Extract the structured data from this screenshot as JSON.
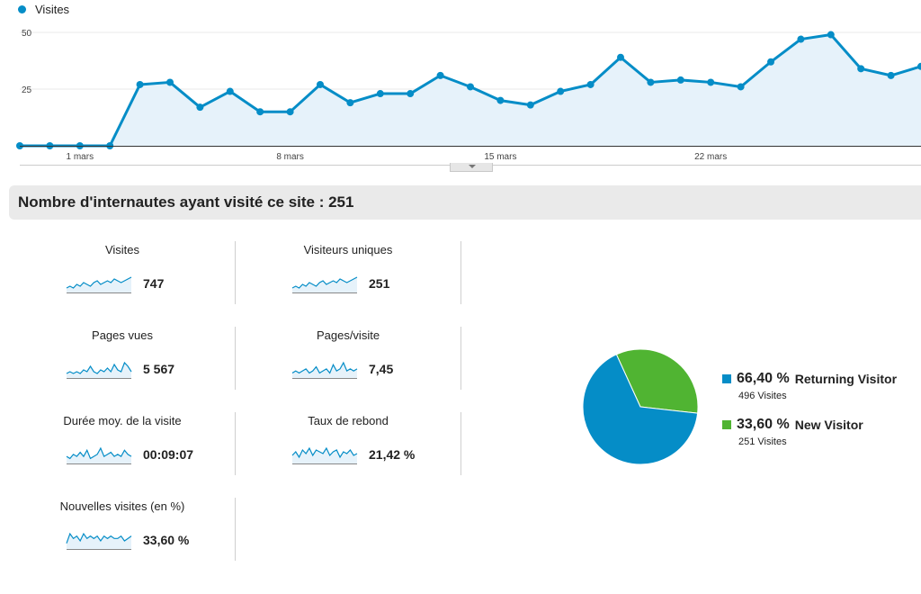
{
  "legend": {
    "series_label": "Visites"
  },
  "colors": {
    "series": "#058dc7",
    "area": "#e6f2fa",
    "new": "#50b432",
    "grid": "#e8e8e8"
  },
  "chart_data": {
    "type": "area",
    "series": [
      {
        "name": "Visites",
        "values": [
          0,
          0,
          0,
          0,
          27,
          28,
          17,
          24,
          15,
          15,
          27,
          19,
          23,
          23,
          31,
          26,
          20,
          18,
          24,
          27,
          39,
          28,
          29,
          28,
          26,
          37,
          47,
          49,
          34,
          31,
          35
        ]
      }
    ],
    "x_labels": [
      "1 mars",
      "8 mars",
      "15 mars",
      "22 mars"
    ],
    "x_label_indices": [
      2,
      9,
      16,
      23
    ],
    "y_ticks": [
      25,
      50
    ],
    "ylim": [
      0,
      50
    ],
    "grid": true
  },
  "summary": {
    "title": "Nombre d'internautes ayant visité ce site : 251"
  },
  "metrics": [
    {
      "label": "Visites",
      "value": "747",
      "spark": [
        2,
        3,
        2,
        4,
        3,
        5,
        4,
        3,
        5,
        6,
        4,
        5,
        6,
        5,
        7,
        6,
        5,
        6,
        7,
        8
      ]
    },
    {
      "label": "Visiteurs uniques",
      "value": "251",
      "spark": [
        2,
        3,
        2,
        4,
        3,
        5,
        4,
        3,
        5,
        6,
        4,
        5,
        6,
        5,
        7,
        6,
        5,
        6,
        7,
        8
      ]
    },
    {
      "label": "Pages vues",
      "value": "5 567",
      "spark": [
        2,
        3,
        2,
        3,
        2,
        4,
        3,
        6,
        3,
        2,
        4,
        3,
        5,
        3,
        7,
        4,
        3,
        8,
        6,
        3
      ]
    },
    {
      "label": "Pages/visite",
      "value": "7,45",
      "spark": [
        2,
        3,
        2,
        3,
        4,
        2,
        3,
        5,
        2,
        3,
        4,
        2,
        6,
        3,
        4,
        7,
        3,
        4,
        3,
        4
      ]
    },
    {
      "label": "Durée moy. de la visite",
      "value": "00:09:07",
      "spark": [
        3,
        2,
        4,
        3,
        5,
        3,
        6,
        2,
        3,
        4,
        7,
        3,
        4,
        5,
        3,
        4,
        3,
        6,
        4,
        3
      ]
    },
    {
      "label": "Taux de rebond",
      "value": "21,42 %",
      "spark": [
        4,
        6,
        3,
        7,
        5,
        8,
        4,
        7,
        6,
        5,
        8,
        4,
        6,
        7,
        3,
        6,
        5,
        7,
        4,
        5
      ]
    },
    {
      "label": "Nouvelles visites (en %)",
      "value": "33,60 %",
      "spark": [
        2,
        6,
        4,
        5,
        3,
        6,
        4,
        5,
        4,
        5,
        3,
        5,
        4,
        5,
        4,
        4,
        5,
        3,
        4,
        5
      ]
    }
  ],
  "pie": {
    "segments": [
      {
        "pct_value": 66.4,
        "pct": "66,40 %",
        "name": "Returning Visitor",
        "sub": "496 Visites",
        "color": "#058dc7"
      },
      {
        "pct_value": 33.6,
        "pct": "33,60 %",
        "name": "New Visitor",
        "sub": "251 Visites",
        "color": "#50b432"
      }
    ]
  }
}
